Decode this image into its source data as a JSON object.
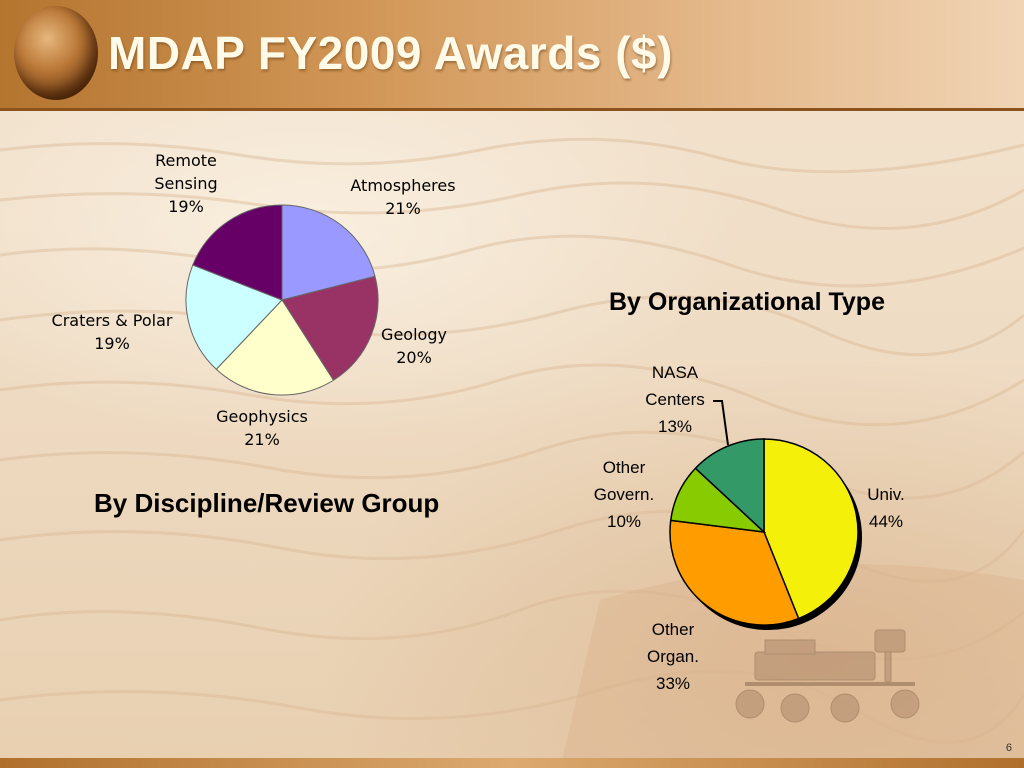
{
  "slide": {
    "title": "MDAP FY2009 Awards ($)",
    "page_number": "6"
  },
  "chart_data": [
    {
      "type": "pie",
      "title": "By Discipline/Review Group",
      "slices": [
        {
          "label_lines": [
            "Atmospheres",
            "21%"
          ],
          "value": 21,
          "color": "#9999ff"
        },
        {
          "label_lines": [
            "Geology",
            "20%"
          ],
          "value": 20,
          "color": "#993366"
        },
        {
          "label_lines": [
            "Geophysics",
            "21%"
          ],
          "value": 21,
          "color": "#ffffcc"
        },
        {
          "label_lines": [
            "Craters & Polar",
            "19%"
          ],
          "value": 19,
          "color": "#ccffff"
        },
        {
          "label_lines": [
            "Remote",
            "Sensing",
            "19%"
          ],
          "value": 19,
          "color": "#660066"
        }
      ]
    },
    {
      "type": "pie",
      "title": "By Organizational Type",
      "slices": [
        {
          "label_lines": [
            "Univ.",
            "44%"
          ],
          "value": 44,
          "color": "#f5f00a"
        },
        {
          "label_lines": [
            "Other",
            "Organ.",
            "33%"
          ],
          "value": 33,
          "color": "#ff9c00"
        },
        {
          "label_lines": [
            "Other",
            "Govern.",
            "10%"
          ],
          "value": 10,
          "color": "#88cc00"
        },
        {
          "label_lines": [
            "NASA",
            "Centers",
            "13%"
          ],
          "value": 13,
          "color": "#339966"
        }
      ]
    }
  ]
}
